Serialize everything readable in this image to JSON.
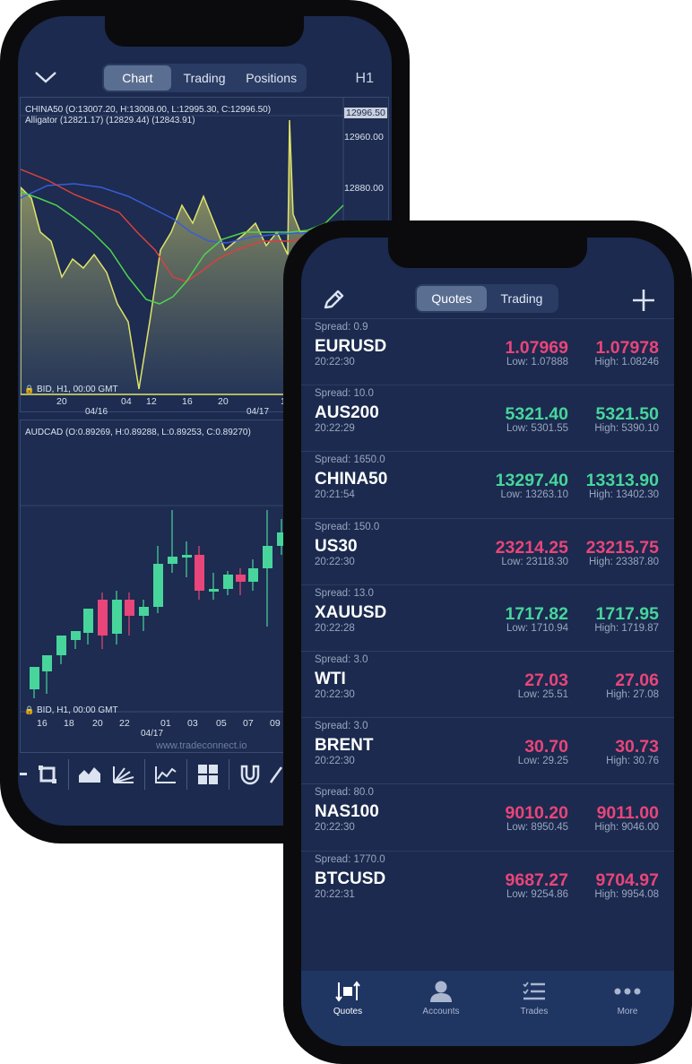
{
  "chart_screen": {
    "tabs": [
      "Chart",
      "Trading",
      "Positions"
    ],
    "timeframe": "H1",
    "chart1": {
      "ohlc_label": "CHINA50 (O:13007.20, H:13008.00, L:12995.30, C:12996.50)",
      "alligator_label": "Alligator (12821.17) (12829.44) (12843.91)",
      "price_tag": "12996.50",
      "price_ticks": [
        "12960.00",
        "12880.00"
      ],
      "bid_label": "BID, H1, 00:00 GMT",
      "x_ticks": [
        "20",
        "04",
        "12",
        "16",
        "20",
        "1"
      ],
      "date_labels": [
        "04/16",
        "04/17"
      ]
    },
    "chart2": {
      "ohlc_label": "AUDCAD (O:0.89269, H:0.89288, L:0.89253, C:0.89270)",
      "bid_label": "BID, H1, 00:00 GMT",
      "x_ticks": [
        "16",
        "18",
        "20",
        "22",
        "01",
        "03",
        "05",
        "07",
        "09"
      ],
      "date_label": "04/17"
    },
    "watermark": "www.tradeconnect.io"
  },
  "quotes_screen": {
    "tabs": [
      "Quotes",
      "Trading"
    ],
    "quotes": [
      {
        "spread": "Spread: 0.9",
        "symbol": "EURUSD",
        "time": "20:22:30",
        "bid": "1.07969",
        "ask": "1.07978",
        "low": "Low: 1.07888",
        "high": "High: 1.08246",
        "color": "red"
      },
      {
        "spread": "Spread: 10.0",
        "symbol": "AUS200",
        "time": "20:22:29",
        "bid": "5321.40",
        "ask": "5321.50",
        "low": "Low: 5301.55",
        "high": "High: 5390.10",
        "color": "green"
      },
      {
        "spread": "Spread: 1650.0",
        "symbol": "CHINA50",
        "time": "20:21:54",
        "bid": "13297.40",
        "ask": "13313.90",
        "low": "Low: 13263.10",
        "high": "High: 13402.30",
        "color": "green"
      },
      {
        "spread": "Spread: 150.0",
        "symbol": "US30",
        "time": "20:22:30",
        "bid": "23214.25",
        "ask": "23215.75",
        "low": "Low: 23118.30",
        "high": "High: 23387.80",
        "color": "red"
      },
      {
        "spread": "Spread: 13.0",
        "symbol": "XAUUSD",
        "time": "20:22:28",
        "bid": "1717.82",
        "ask": "1717.95",
        "low": "Low: 1710.94",
        "high": "High: 1719.87",
        "color": "green"
      },
      {
        "spread": "Spread: 3.0",
        "symbol": "WTI",
        "time": "20:22:30",
        "bid": "27.03",
        "ask": "27.06",
        "low": "Low: 25.51",
        "high": "High: 27.08",
        "color": "red"
      },
      {
        "spread": "Spread: 3.0",
        "symbol": "BRENT",
        "time": "20:22:30",
        "bid": "30.70",
        "ask": "30.73",
        "low": "Low: 29.25",
        "high": "High: 30.76",
        "color": "red"
      },
      {
        "spread": "Spread: 80.0",
        "symbol": "NAS100",
        "time": "20:22:30",
        "bid": "9010.20",
        "ask": "9011.00",
        "low": "Low: 8950.45",
        "high": "High: 9046.00",
        "color": "red"
      },
      {
        "spread": "Spread: 1770.0",
        "symbol": "BTCUSD",
        "time": "20:22:31",
        "bid": "9687.27",
        "ask": "9704.97",
        "low": "Low: 9254.86",
        "high": "High: 9954.08",
        "color": "red"
      }
    ],
    "nav": [
      {
        "label": "Quotes",
        "icon": "quotes-icon"
      },
      {
        "label": "Accounts",
        "icon": "user-icon"
      },
      {
        "label": "Trades",
        "icon": "checklist-icon"
      },
      {
        "label": "More",
        "icon": "more-dots-icon"
      }
    ]
  },
  "colors": {
    "up": "#47d59c",
    "down": "#e8457a",
    "background": "#1b2a4e"
  }
}
